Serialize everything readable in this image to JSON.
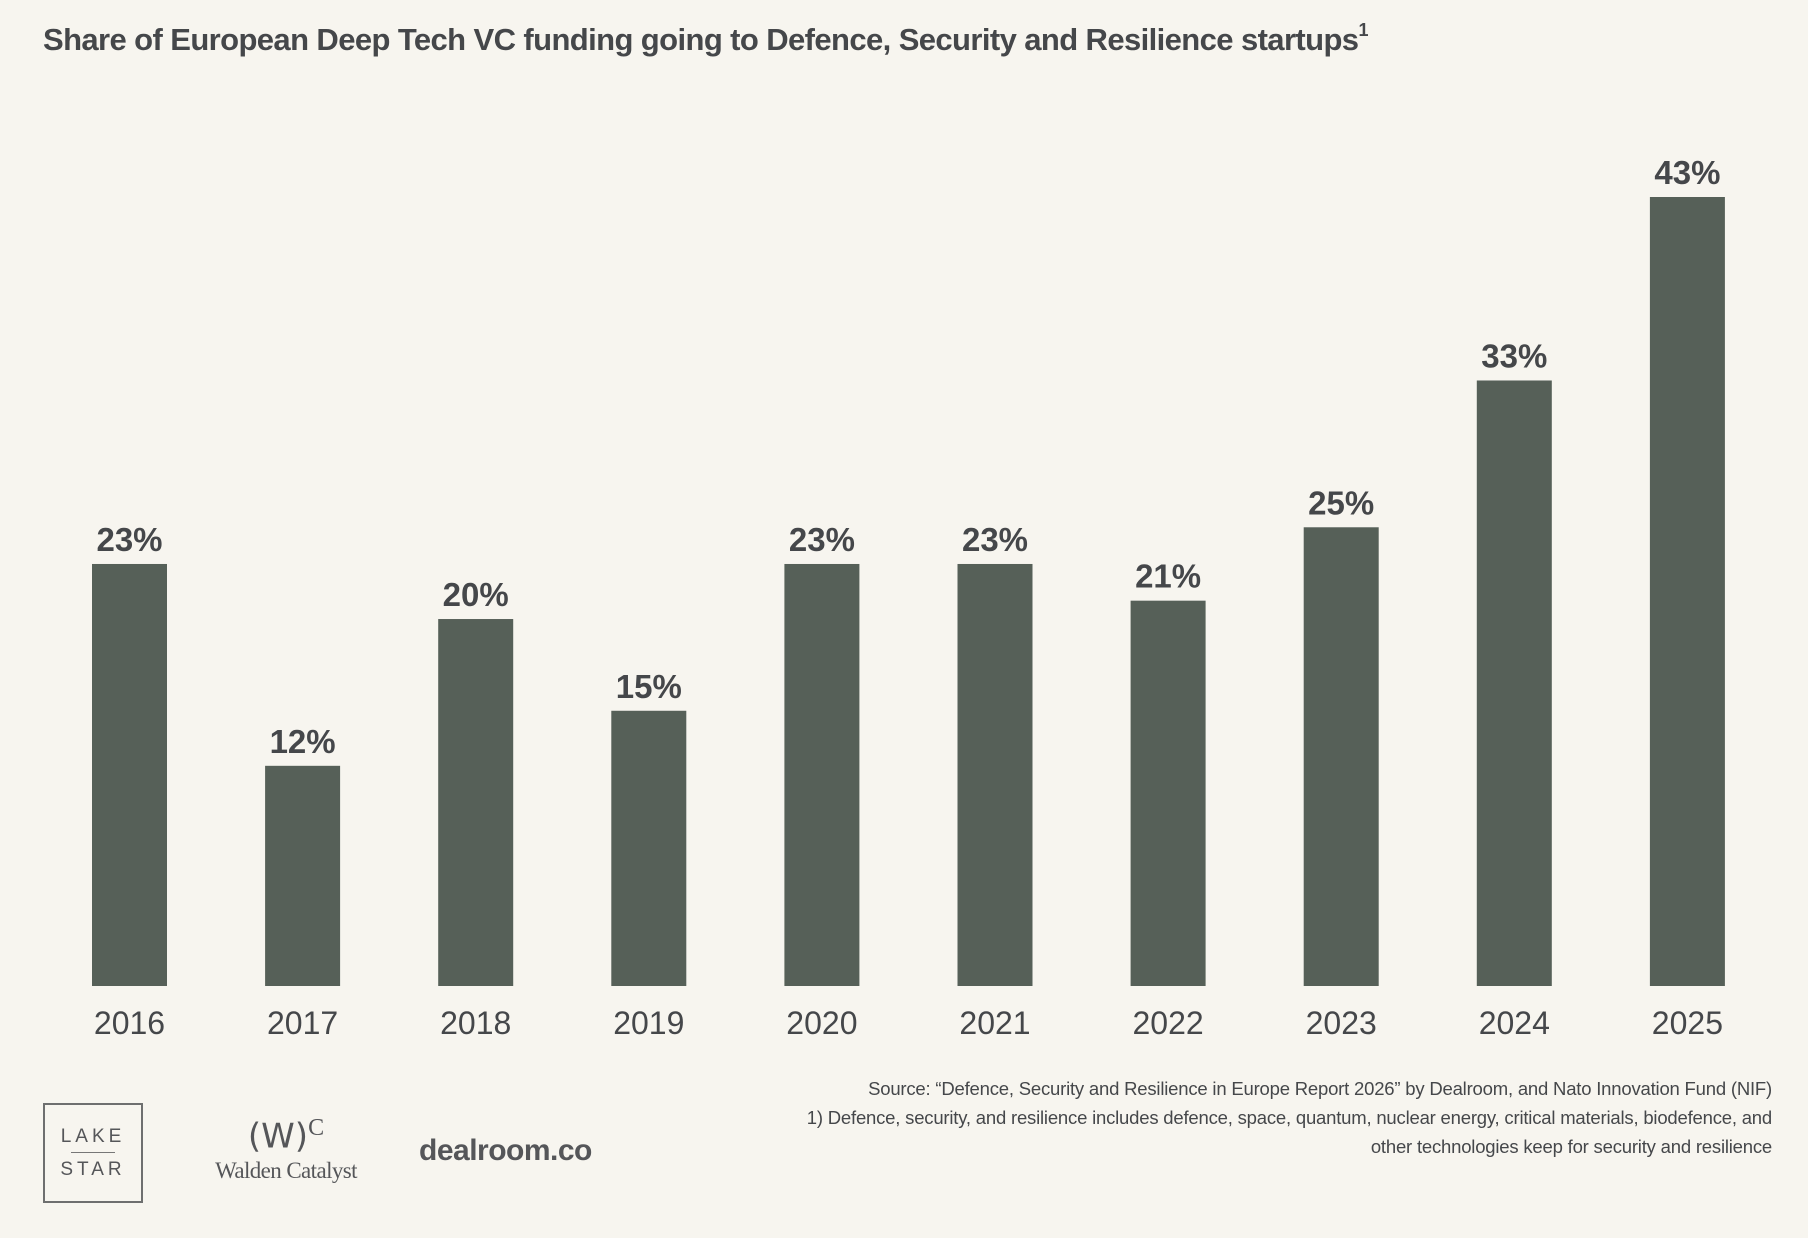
{
  "chart_data": {
    "type": "bar",
    "title": "Share of European Deep Tech VC funding going to Defence, Security and Resilience startups",
    "title_footnote_marker": "1",
    "categories": [
      "2016",
      "2017",
      "2018",
      "2019",
      "2020",
      "2021",
      "2022",
      "2023",
      "2024",
      "2025"
    ],
    "values": [
      23,
      12,
      20,
      15,
      23,
      23,
      21,
      25,
      33,
      43
    ],
    "data_labels": [
      "23%",
      "12%",
      "20%",
      "15%",
      "23%",
      "23%",
      "21%",
      "25%",
      "33%",
      "43%"
    ],
    "unit": "%",
    "ylim": [
      0,
      43
    ],
    "grid": false,
    "bar_color": "#566058",
    "label_color": "#45474a"
  },
  "source": {
    "line1": "Source: “Defence, Security and Resilience in Europe Report 2026” by Dealroom, and Nato Innovation Fund (NIF)",
    "line2": "1) Defence, security, and resilience includes defence, space, quantum, nuclear energy, critical materials, biodefence, and",
    "line3": "other technologies keep for security and resilience"
  },
  "logos": {
    "lakestar": {
      "line1": "LAKE",
      "line2": "STAR"
    },
    "walden": {
      "mark": "(W)",
      "mark_sup": "C",
      "name": "Walden Catalyst"
    },
    "dealroom": "dealroom.co"
  }
}
